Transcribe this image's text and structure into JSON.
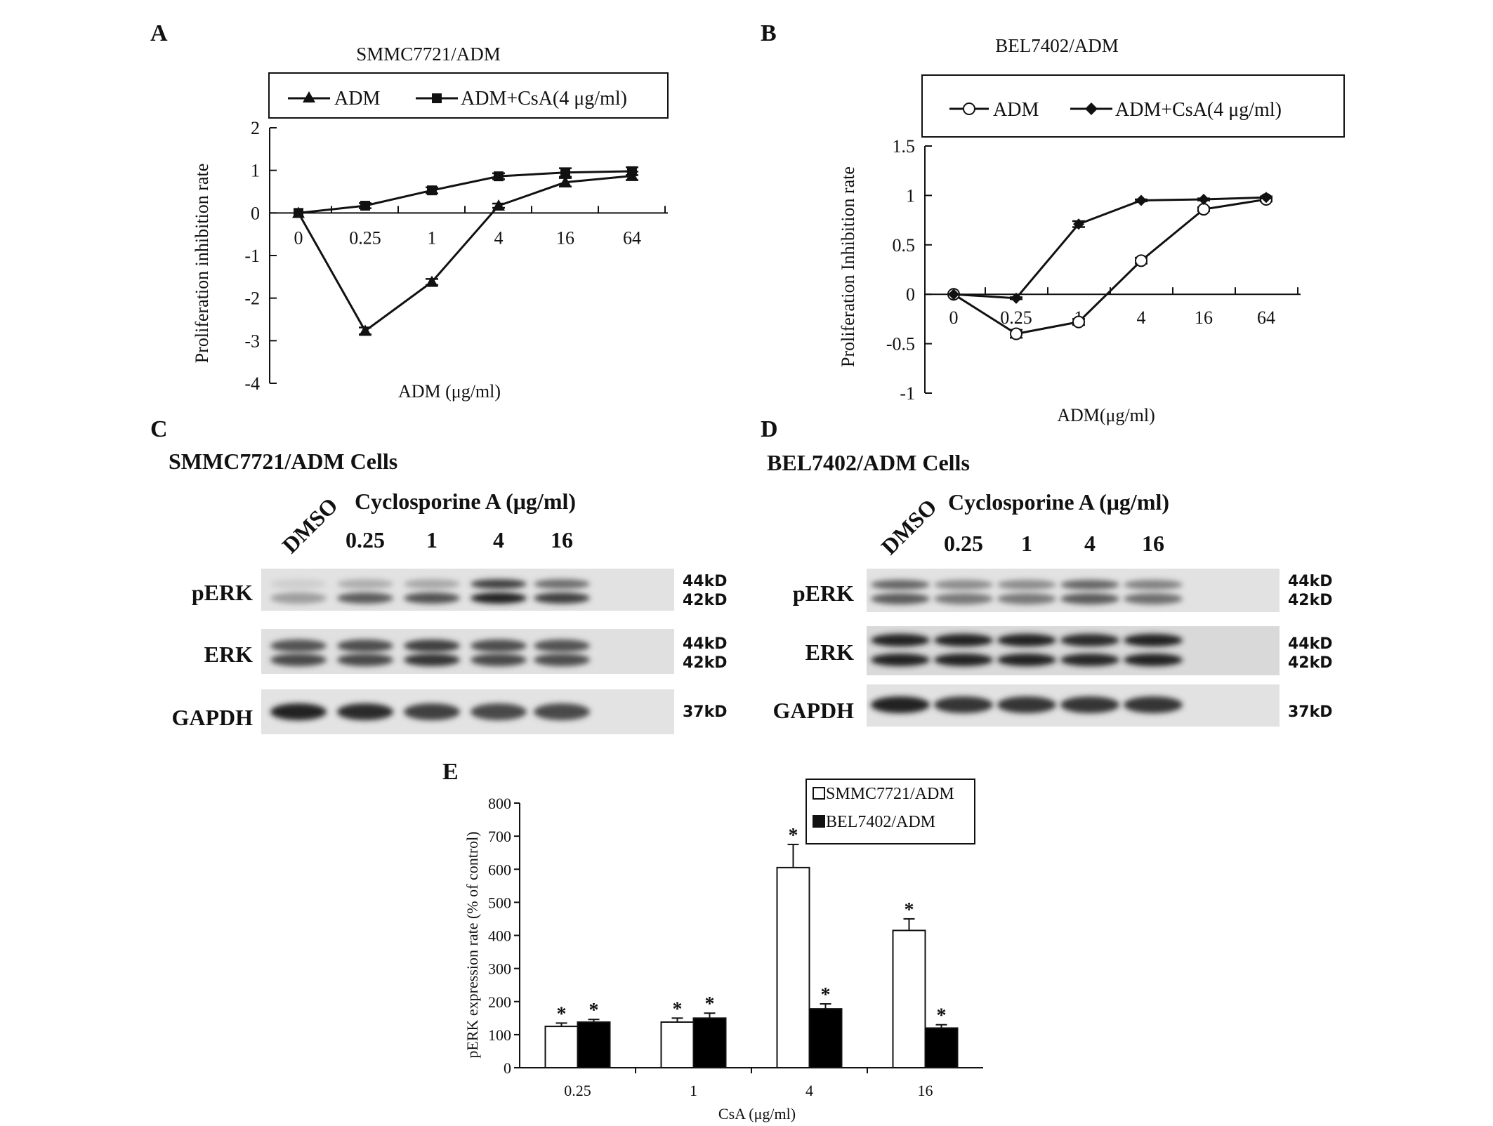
{
  "panels": {
    "a": "A",
    "b": "B",
    "c": "C",
    "d": "D",
    "e": "E"
  },
  "chart_data": [
    {
      "id": "A",
      "type": "line",
      "title": "SMMC7721/ADM",
      "xlabel": "ADM (μg/ml)",
      "ylabel": "Proliferation inhibition rate",
      "categories": [
        "0",
        "0.25",
        "1",
        "4",
        "16",
        "64"
      ],
      "ylim": [
        -4,
        2
      ],
      "yticks": [
        "2",
        "1",
        "0",
        "-1",
        "-2",
        "-3",
        "-4"
      ],
      "legend_position": "top",
      "series": [
        {
          "name": "ADM",
          "marker": "triangle",
          "values": [
            0,
            -2.77,
            -1.62,
            0.17,
            0.72,
            0.87
          ],
          "err": [
            0,
            0.08,
            0.07,
            0.05,
            0.1,
            0.1
          ]
        },
        {
          "name": "ADM+CsA(4 μg/ml)",
          "marker": "square",
          "values": [
            0,
            0.17,
            0.53,
            0.86,
            0.95,
            0.98
          ],
          "err": [
            0,
            0.06,
            0.07,
            0.07,
            0.1,
            0.09
          ]
        }
      ]
    },
    {
      "id": "B",
      "type": "line",
      "title": "BEL7402/ADM",
      "xlabel": "ADM(μg/ml)",
      "ylabel": "Proliferation Inhibition rate",
      "categories": [
        "0",
        "0.25",
        "1",
        "4",
        "16",
        "64"
      ],
      "ylim": [
        -1,
        1.5
      ],
      "yticks": [
        "1.5",
        "1",
        "0.5",
        "0",
        "-0.5",
        "-1"
      ],
      "legend_position": "top",
      "series": [
        {
          "name": "ADM",
          "marker": "circle-open",
          "values": [
            0,
            -0.4,
            -0.28,
            0.34,
            0.86,
            0.96
          ],
          "err": [
            0,
            0.04,
            0.03,
            0.03,
            0.02,
            0.02
          ]
        },
        {
          "name": "ADM+CsA(4 μg/ml)",
          "marker": "diamond",
          "values": [
            0,
            -0.04,
            0.71,
            0.95,
            0.96,
            0.98
          ],
          "err": [
            0,
            0.01,
            0.03,
            0.01,
            0.01,
            0.01
          ]
        }
      ]
    },
    {
      "id": "E",
      "type": "bar",
      "xlabel": "CsA (μg/ml)",
      "ylabel": "pERK expression rate (% of control)",
      "categories": [
        "0.25",
        "1",
        "4",
        "16"
      ],
      "ylim": [
        0,
        800
      ],
      "yticks": [
        "0",
        "100",
        "200",
        "300",
        "400",
        "500",
        "600",
        "700",
        "800"
      ],
      "legend_position": "top-right",
      "significance": "*",
      "series": [
        {
          "name": "SMMC7721/ADM",
          "color": "#ffffff",
          "values": [
            125,
            138,
            605,
            415
          ],
          "err": [
            10,
            12,
            70,
            35
          ]
        },
        {
          "name": "BEL7402/ADM",
          "color": "#000000",
          "values": [
            138,
            150,
            178,
            120
          ],
          "err": [
            8,
            15,
            15,
            10
          ]
        }
      ]
    }
  ],
  "blots": {
    "c": {
      "title": "SMMC7721/ADM Cells",
      "treatment": "Cyclosporine A (μg/ml)",
      "control_lane": "DMSO",
      "lanes": [
        "0.25",
        "1",
        "4",
        "16"
      ],
      "rows": [
        "pERK",
        "ERK",
        "GAPDH"
      ],
      "pERK_upper": [
        0.05,
        0.22,
        0.25,
        0.8,
        0.55
      ],
      "pERK_lower": [
        0.3,
        0.65,
        0.7,
        0.95,
        0.8
      ],
      "ERK_upper": [
        0.7,
        0.72,
        0.8,
        0.72,
        0.7
      ],
      "ERK_lower": [
        0.75,
        0.75,
        0.85,
        0.75,
        0.72
      ],
      "GAPDH": [
        0.95,
        0.9,
        0.8,
        0.75,
        0.75
      ]
    },
    "d": {
      "title": "BEL7402/ADM Cells",
      "treatment": "Cyclosporine A (μg/ml)",
      "control_lane": "DMSO",
      "lanes": [
        "0.25",
        "1",
        "4",
        "16"
      ],
      "rows": [
        "pERK",
        "ERK",
        "GAPDH"
      ],
      "pERK_upper": [
        0.6,
        0.4,
        0.4,
        0.6,
        0.45
      ],
      "pERK_lower": [
        0.65,
        0.5,
        0.5,
        0.65,
        0.55
      ],
      "ERK_upper": [
        0.95,
        0.95,
        0.95,
        0.9,
        0.95
      ],
      "ERK_lower": [
        0.95,
        0.95,
        0.95,
        0.92,
        0.95
      ],
      "GAPDH": [
        0.95,
        0.85,
        0.85,
        0.85,
        0.85
      ]
    },
    "kd_labels": {
      "upper": "44kD",
      "lower": "42kD",
      "gapdh": "37kD"
    }
  }
}
